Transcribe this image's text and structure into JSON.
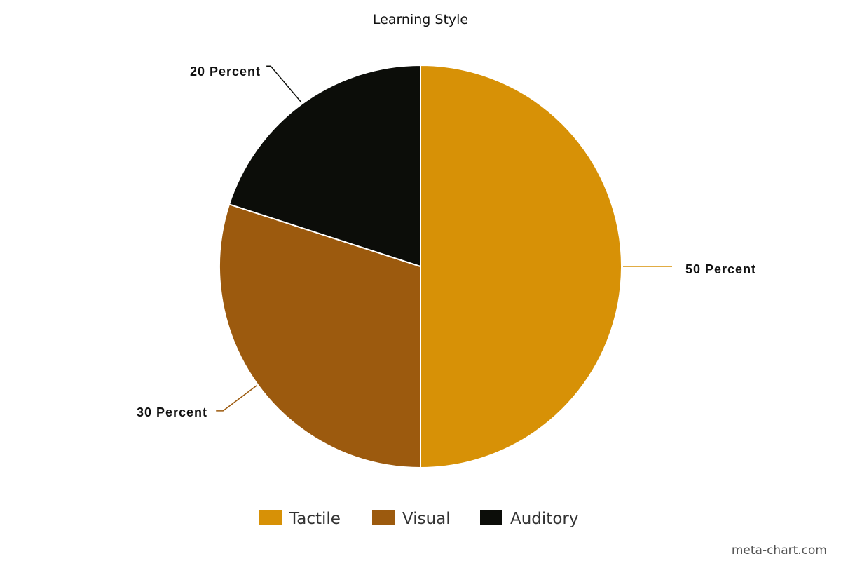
{
  "chart_data": {
    "type": "pie",
    "title": "Learning Style",
    "slices": [
      {
        "name": "Tactile",
        "value": 50,
        "label": "50 Percent",
        "color": "#D79106"
      },
      {
        "name": "Visual",
        "value": 30,
        "label": "30 Percent",
        "color": "#9C5A0E"
      },
      {
        "name": "Auditory",
        "value": 20,
        "label": "20 Percent",
        "color": "#0C0D09"
      }
    ],
    "start_angle_deg": 0,
    "direction": "clockwise",
    "legend_position": "bottom"
  },
  "footer": {
    "credit": "meta-chart.com"
  }
}
